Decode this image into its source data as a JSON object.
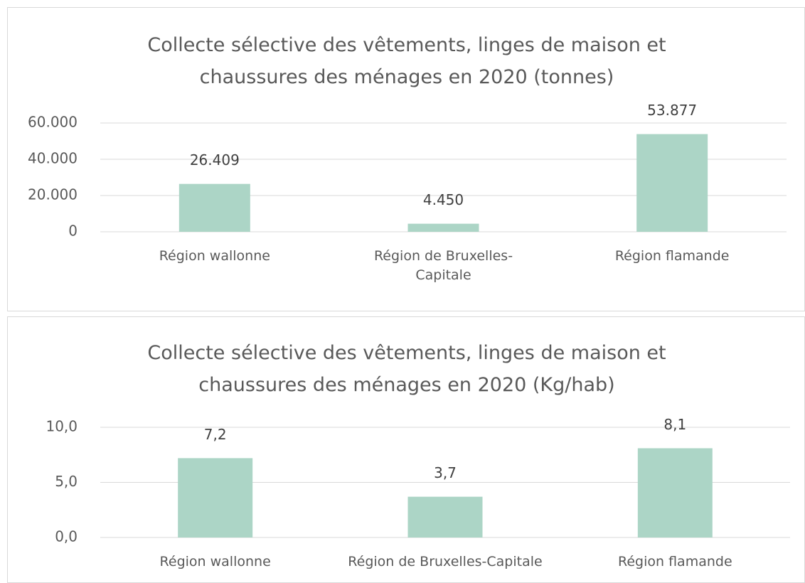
{
  "chart_data": [
    {
      "type": "bar",
      "title": "Collecte sélective des vêtements, linges de maison et chaussures des ménages en 2020 (tonnes)",
      "categories": [
        "Région wallonne",
        "Région de Bruxelles-Capitale",
        "Région flamande"
      ],
      "values": [
        26409,
        4450,
        53877
      ],
      "value_labels": [
        "26.409",
        "4.450",
        "53.877"
      ],
      "color": "#acd5c6",
      "ylim": [
        0,
        60000
      ],
      "yticks": [
        0,
        {
          "value": 20000,
          "label": "20.000"
        },
        {
          "value": 40000,
          "label": "40.000"
        },
        {
          "value": 60000,
          "label": "60.000"
        }
      ],
      "grid": true
    },
    {
      "type": "bar",
      "title": "Collecte sélective des vêtements, linges de maison et chaussures des ménages en 2020 (Kg/hab)",
      "categories": [
        "Région wallonne",
        "Région de Bruxelles-Capitale",
        "Région flamande"
      ],
      "values": [
        7.2,
        3.7,
        8.1
      ],
      "value_labels": [
        "7,2",
        "3,7",
        "8,1"
      ],
      "color": "#acd5c6",
      "ylim": [
        0,
        10
      ],
      "yticks": [
        {
          "value": 0,
          "label": "0,0"
        },
        {
          "value": 5,
          "label": "5,0"
        },
        {
          "value": 10,
          "label": "10,0"
        }
      ],
      "grid": true
    }
  ]
}
